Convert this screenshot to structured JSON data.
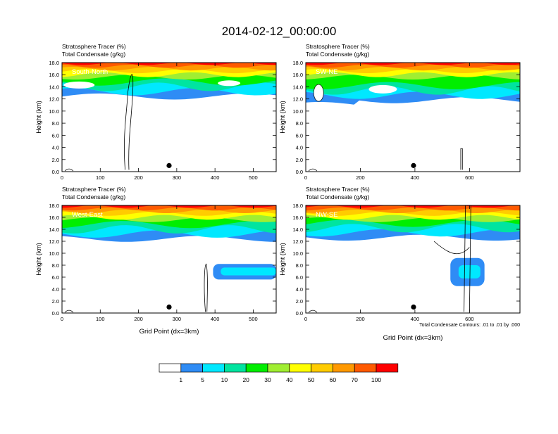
{
  "figure_title": "2014-02-12_00:00:00",
  "footnote": "Total Condensate Contours: .01 to .01 by .000",
  "chart_data": [
    {
      "type": "heatmap",
      "line1": "Stratosphere Tracer   (%)",
      "line2": "Total Condensate   (g/kg)",
      "panel_label": "South-North",
      "xlabel": "",
      "ylabel": "Height (km)",
      "xticks": [
        0,
        100,
        200,
        300,
        400,
        500
      ],
      "xlim": [
        0,
        560
      ],
      "yticks": [
        "0.0",
        "2.0",
        "4.0",
        "6.0",
        "8.0",
        "10.0",
        "12.0",
        "14.0",
        "16.0",
        "18.0"
      ],
      "ylim": [
        0,
        18
      ],
      "marker_x": 280,
      "marker_y": 1.0
    },
    {
      "type": "heatmap",
      "line1": "Stratosphere Tracer   (%)",
      "line2": "Total Condensate   (g/kg)",
      "panel_label": "SW-NE",
      "xlabel": "",
      "ylabel": "Height (km)",
      "xticks": [
        0,
        200,
        400,
        600
      ],
      "xlim": [
        0,
        785
      ],
      "yticks": [
        "0.0",
        "2.0",
        "4.0",
        "6.0",
        "8.0",
        "10.0",
        "12.0",
        "14.0",
        "16.0",
        "18.0"
      ],
      "ylim": [
        0,
        18
      ],
      "marker_x": 395,
      "marker_y": 1.0
    },
    {
      "type": "heatmap",
      "line1": "Stratosphere Tracer   (%)",
      "line2": "Total Condensate   (g/kg)",
      "panel_label": "West-East",
      "xlabel": "Grid Point (dx=3km)",
      "ylabel": "Height (km)",
      "xticks": [
        0,
        100,
        200,
        300,
        400,
        500
      ],
      "xlim": [
        0,
        560
      ],
      "yticks": [
        "0.0",
        "2.0",
        "4.0",
        "6.0",
        "8.0",
        "10.0",
        "12.0",
        "14.0",
        "16.0",
        "18.0"
      ],
      "ylim": [
        0,
        18
      ],
      "marker_x": 280,
      "marker_y": 1.0
    },
    {
      "type": "heatmap",
      "line1": "Stratosphere Tracer   (%)",
      "line2": "Total Condensate   (g/kg)",
      "panel_label": "NW-SE",
      "xlabel": "Grid Point (dx=3km)",
      "ylabel": "Height (km)",
      "xticks": [
        0,
        200,
        400,
        600
      ],
      "xlim": [
        0,
        785
      ],
      "yticks": [
        "0.0",
        "2.0",
        "4.0",
        "6.0",
        "8.0",
        "10.0",
        "12.0",
        "14.0",
        "16.0",
        "18.0"
      ],
      "ylim": [
        0,
        18
      ],
      "marker_x": 395,
      "marker_y": 1.0
    }
  ],
  "colorbar": {
    "labels": [
      "1",
      "5",
      "10",
      "20",
      "30",
      "40",
      "50",
      "60",
      "70",
      "100"
    ],
    "colors": [
      "#ffffff",
      "#2f8cf5",
      "#00e8ff",
      "#00e4a0",
      "#00ee00",
      "#a0ee32",
      "#ffff00",
      "#ffcc00",
      "#ff9900",
      "#ff5a00",
      "#ff0000"
    ]
  }
}
